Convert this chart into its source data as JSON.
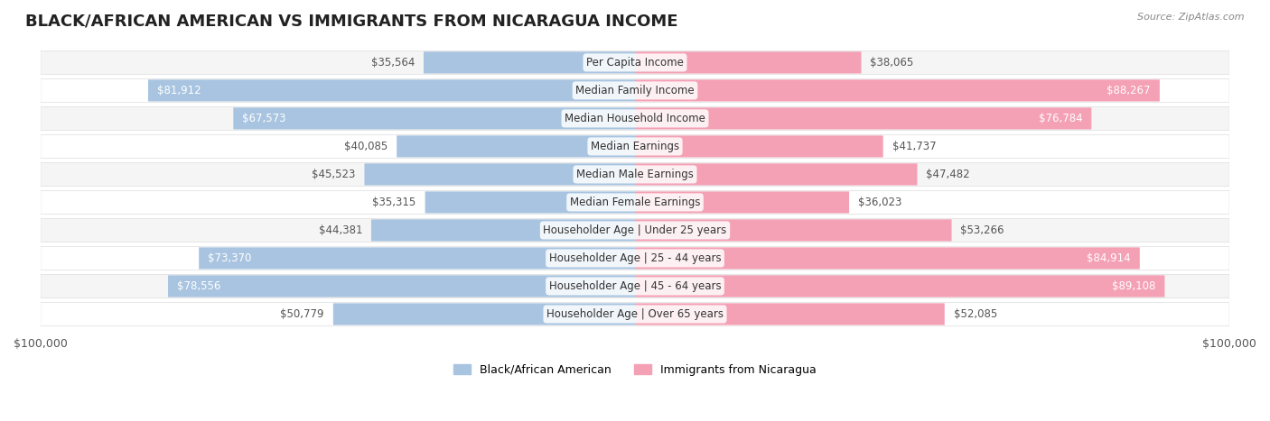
{
  "title": "BLACK/AFRICAN AMERICAN VS IMMIGRANTS FROM NICARAGUA INCOME",
  "source": "Source: ZipAtlas.com",
  "categories": [
    "Per Capita Income",
    "Median Family Income",
    "Median Household Income",
    "Median Earnings",
    "Median Male Earnings",
    "Median Female Earnings",
    "Householder Age | Under 25 years",
    "Householder Age | 25 - 44 years",
    "Householder Age | 45 - 64 years",
    "Householder Age | Over 65 years"
  ],
  "left_values": [
    35564,
    81912,
    67573,
    40085,
    45523,
    35315,
    44381,
    73370,
    78556,
    50779
  ],
  "right_values": [
    38065,
    88267,
    76784,
    41737,
    47482,
    36023,
    53266,
    84914,
    89108,
    52085
  ],
  "left_labels": [
    "$35,564",
    "$81,912",
    "$67,573",
    "$40,085",
    "$45,523",
    "$35,315",
    "$44,381",
    "$73,370",
    "$78,556",
    "$50,779"
  ],
  "right_labels": [
    "$38,065",
    "$88,267",
    "$76,784",
    "$41,737",
    "$47,482",
    "$36,023",
    "$53,266",
    "$84,914",
    "$89,108",
    "$52,085"
  ],
  "left_color": "#a8c4e0",
  "right_color": "#f4a0b5",
  "left_color_dark": "#6699cc",
  "right_color_dark": "#e8537a",
  "left_legend": "Black/African American",
  "right_legend": "Immigrants from Nicaragua",
  "max_value": 100000,
  "bg_color": "#ffffff",
  "row_bg_odd": "#f5f5f5",
  "row_bg_even": "#ffffff",
  "title_fontsize": 13,
  "label_fontsize": 8.5,
  "category_fontsize": 8.5,
  "axis_label_fontsize": 9
}
